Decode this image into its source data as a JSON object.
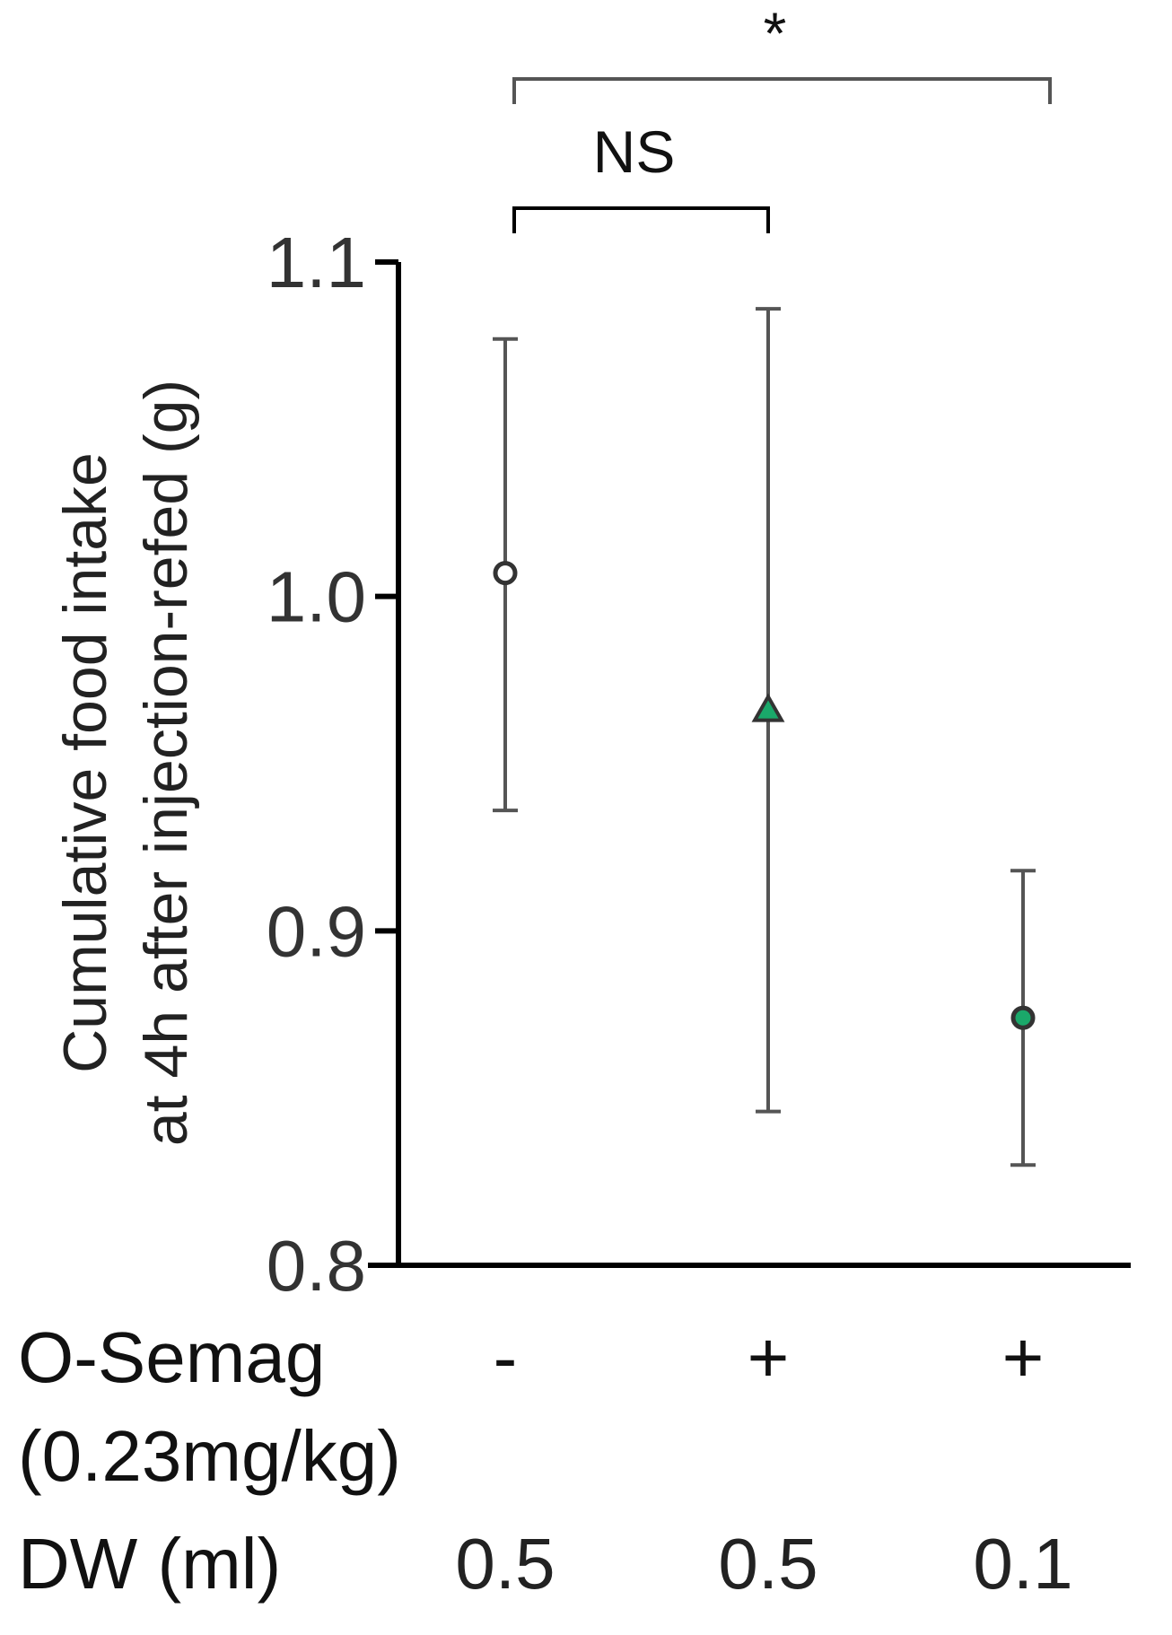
{
  "chart_data": {
    "type": "scatter",
    "title": "",
    "ylabel_lines": [
      "Cumulative food intake",
      "at 4h after injection-refed (g)"
    ],
    "ylim": [
      0.8,
      1.1
    ],
    "yticks": [
      "0.8",
      "0.9",
      "1.0",
      "1.1"
    ],
    "yticks_values": [
      0.8,
      0.9,
      1.0,
      1.1
    ],
    "groups": [
      {
        "marker": "circle-open",
        "color": "#ffffff",
        "mean": 1.007,
        "err_low": 0.936,
        "err_high": 1.077
      },
      {
        "marker": "triangle",
        "color": "#1aa86a",
        "mean": 0.966,
        "err_low": 0.846,
        "err_high": 1.086
      },
      {
        "marker": "circle-filled",
        "color": "#1aa86a",
        "mean": 0.874,
        "err_low": 0.83,
        "err_high": 0.918
      }
    ],
    "conditions": [
      {
        "label_lines": [
          "O-Semag",
          "(0.23mg/kg)"
        ],
        "values": [
          "-",
          "+",
          "+"
        ]
      },
      {
        "label_lines": [
          "DW (ml)"
        ],
        "values": [
          "0.5",
          "0.5",
          "0.1"
        ]
      }
    ],
    "significance": [
      {
        "from": 0,
        "to": 1,
        "label": "NS"
      },
      {
        "from": 0,
        "to": 2,
        "label": "*"
      }
    ],
    "grid": false
  }
}
